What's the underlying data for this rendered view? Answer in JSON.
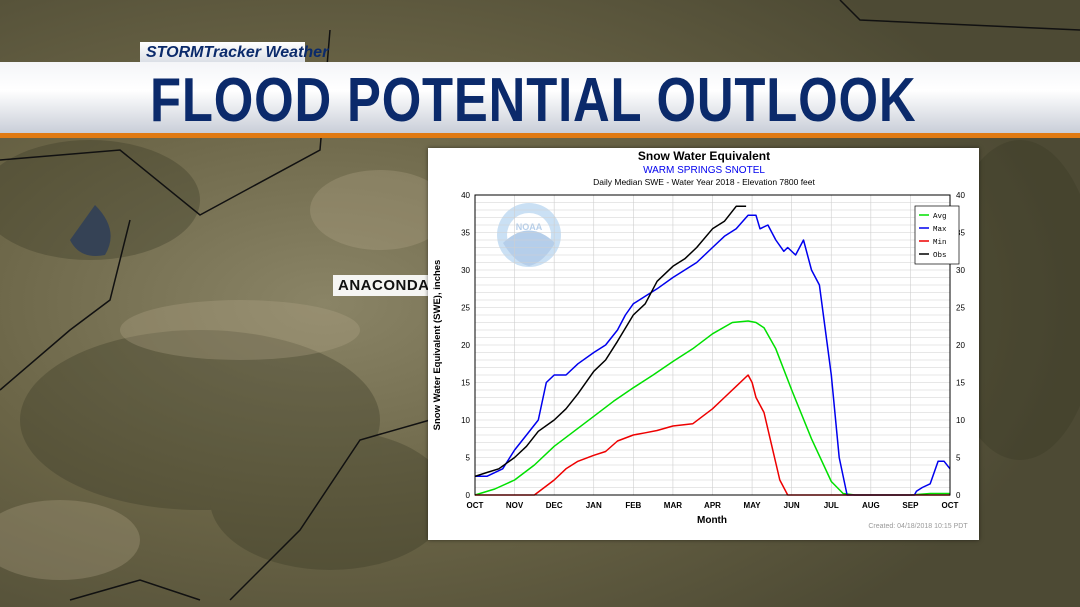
{
  "branding": {
    "show_name": "STORMTracker Weather",
    "headline": "FLOOD POTENTIAL OUTLOOK"
  },
  "map": {
    "place_label": "ANACONDA"
  },
  "chart_data": {
    "type": "line",
    "title": "Snow Water Equivalent",
    "subtitle": "WARM SPRINGS SNOTEL",
    "subtitle2": "Daily Median SWE - Water Year 2018 - Elevation 7800 feet",
    "xlabel": "Month",
    "ylabel": "Snow Water Equivalent (SWE),  inches",
    "categories": [
      "OCT",
      "NOV",
      "DEC",
      "JAN",
      "FEB",
      "MAR",
      "APR",
      "MAY",
      "JUN",
      "JUL",
      "AUG",
      "SEP",
      "OCT"
    ],
    "ylim": [
      0,
      40
    ],
    "yticks": [
      "0",
      "5",
      "10",
      "15",
      "20",
      "25",
      "30",
      "35",
      "40"
    ],
    "grid": true,
    "legend_position": "top-right",
    "watermark": "NOAA",
    "created": "Created: 04/18/2018 10:15 PDT",
    "series": [
      {
        "name": "Avg",
        "color": "#00e000",
        "x": [
          0,
          0.5,
          1,
          1.5,
          2,
          2.5,
          3,
          3.5,
          4,
          4.5,
          5,
          5.5,
          6,
          6.5,
          6.9,
          7.1,
          7.3,
          7.6,
          8,
          8.5,
          9,
          9.3,
          9.6,
          10,
          10.5,
          11,
          11.5,
          12
        ],
        "y": [
          0,
          0.8,
          2,
          4,
          6.5,
          8.5,
          10.5,
          12.5,
          14.3,
          16,
          17.8,
          19.5,
          21.5,
          23,
          23.2,
          23,
          22.3,
          19.5,
          14,
          7.5,
          1.8,
          0.2,
          0,
          0,
          0,
          0,
          0.2,
          0.2
        ]
      },
      {
        "name": "Max",
        "color": "#0000ee",
        "x": [
          0,
          0.3,
          0.7,
          1,
          1.3,
          1.6,
          1.8,
          2,
          2.3,
          2.6,
          3,
          3.3,
          3.6,
          3.8,
          4,
          4.3,
          4.6,
          5,
          5.3,
          5.6,
          6,
          6.3,
          6.6,
          6.9,
          7.1,
          7.2,
          7.4,
          7.6,
          7.8,
          7.9,
          8.1,
          8.3,
          8.5,
          8.7,
          9,
          9.2,
          9.4,
          10,
          10.5,
          11,
          11.1,
          11.15,
          11.3,
          11.5,
          11.7,
          11.85,
          12
        ],
        "y": [
          2.5,
          2.5,
          3.5,
          6,
          8,
          10,
          15,
          16,
          16,
          17.5,
          19,
          20,
          22,
          24,
          25.5,
          26.5,
          27.5,
          29,
          30,
          31,
          33,
          34.5,
          35.5,
          37.3,
          37.3,
          35.5,
          36,
          34,
          32.5,
          33,
          32,
          34,
          30,
          28,
          16,
          5,
          0,
          0,
          0,
          0,
          0,
          0.5,
          1,
          1.5,
          4.5,
          4.5,
          3.5
        ]
      },
      {
        "name": "Min",
        "color": "#ee0000",
        "x": [
          0,
          1,
          1.5,
          2,
          2.3,
          2.6,
          3,
          3.3,
          3.6,
          4,
          4.3,
          4.6,
          5,
          5.5,
          6,
          6.3,
          6.6,
          6.9,
          7,
          7.1,
          7.3,
          7.5,
          7.7,
          7.9,
          8,
          8.5,
          12
        ],
        "y": [
          0,
          0,
          0,
          2,
          3.5,
          4.5,
          5.3,
          5.8,
          7.2,
          8,
          8.3,
          8.6,
          9.2,
          9.5,
          11.5,
          13,
          14.5,
          16,
          15,
          13,
          11,
          6.5,
          2,
          0,
          0,
          0,
          0
        ]
      },
      {
        "name": "Obs",
        "color": "#000000",
        "x": [
          0,
          0.3,
          0.6,
          1,
          1.3,
          1.6,
          2,
          2.3,
          2.6,
          3,
          3.3,
          3.6,
          4,
          4.3,
          4.6,
          5,
          5.3,
          5.6,
          6,
          6.3,
          6.6,
          6.85
        ],
        "y": [
          2.5,
          3,
          3.5,
          5,
          6.5,
          8.5,
          10,
          11.5,
          13.5,
          16.5,
          18,
          20.5,
          24,
          25.5,
          28.5,
          30.5,
          31.5,
          33,
          35.5,
          36.5,
          38.5,
          38.5
        ]
      }
    ]
  }
}
